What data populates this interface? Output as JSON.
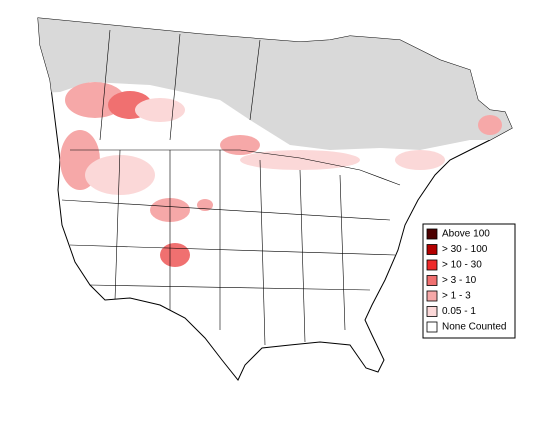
{
  "legend": {
    "items": [
      {
        "label": "Above 100",
        "color": "#4d0000"
      },
      {
        "label": "> 30 - 100",
        "color": "#b30000"
      },
      {
        "label": "> 10 - 30",
        "color": "#ee2a2a"
      },
      {
        "label": "> 3 - 10",
        "color": "#f07070"
      },
      {
        "label": "> 1 - 3",
        "color": "#f6a8a8"
      },
      {
        "label": "0.05 - 1",
        "color": "#fbd8d8"
      },
      {
        "label": "None Counted",
        "color": "#ffffff"
      }
    ]
  }
}
